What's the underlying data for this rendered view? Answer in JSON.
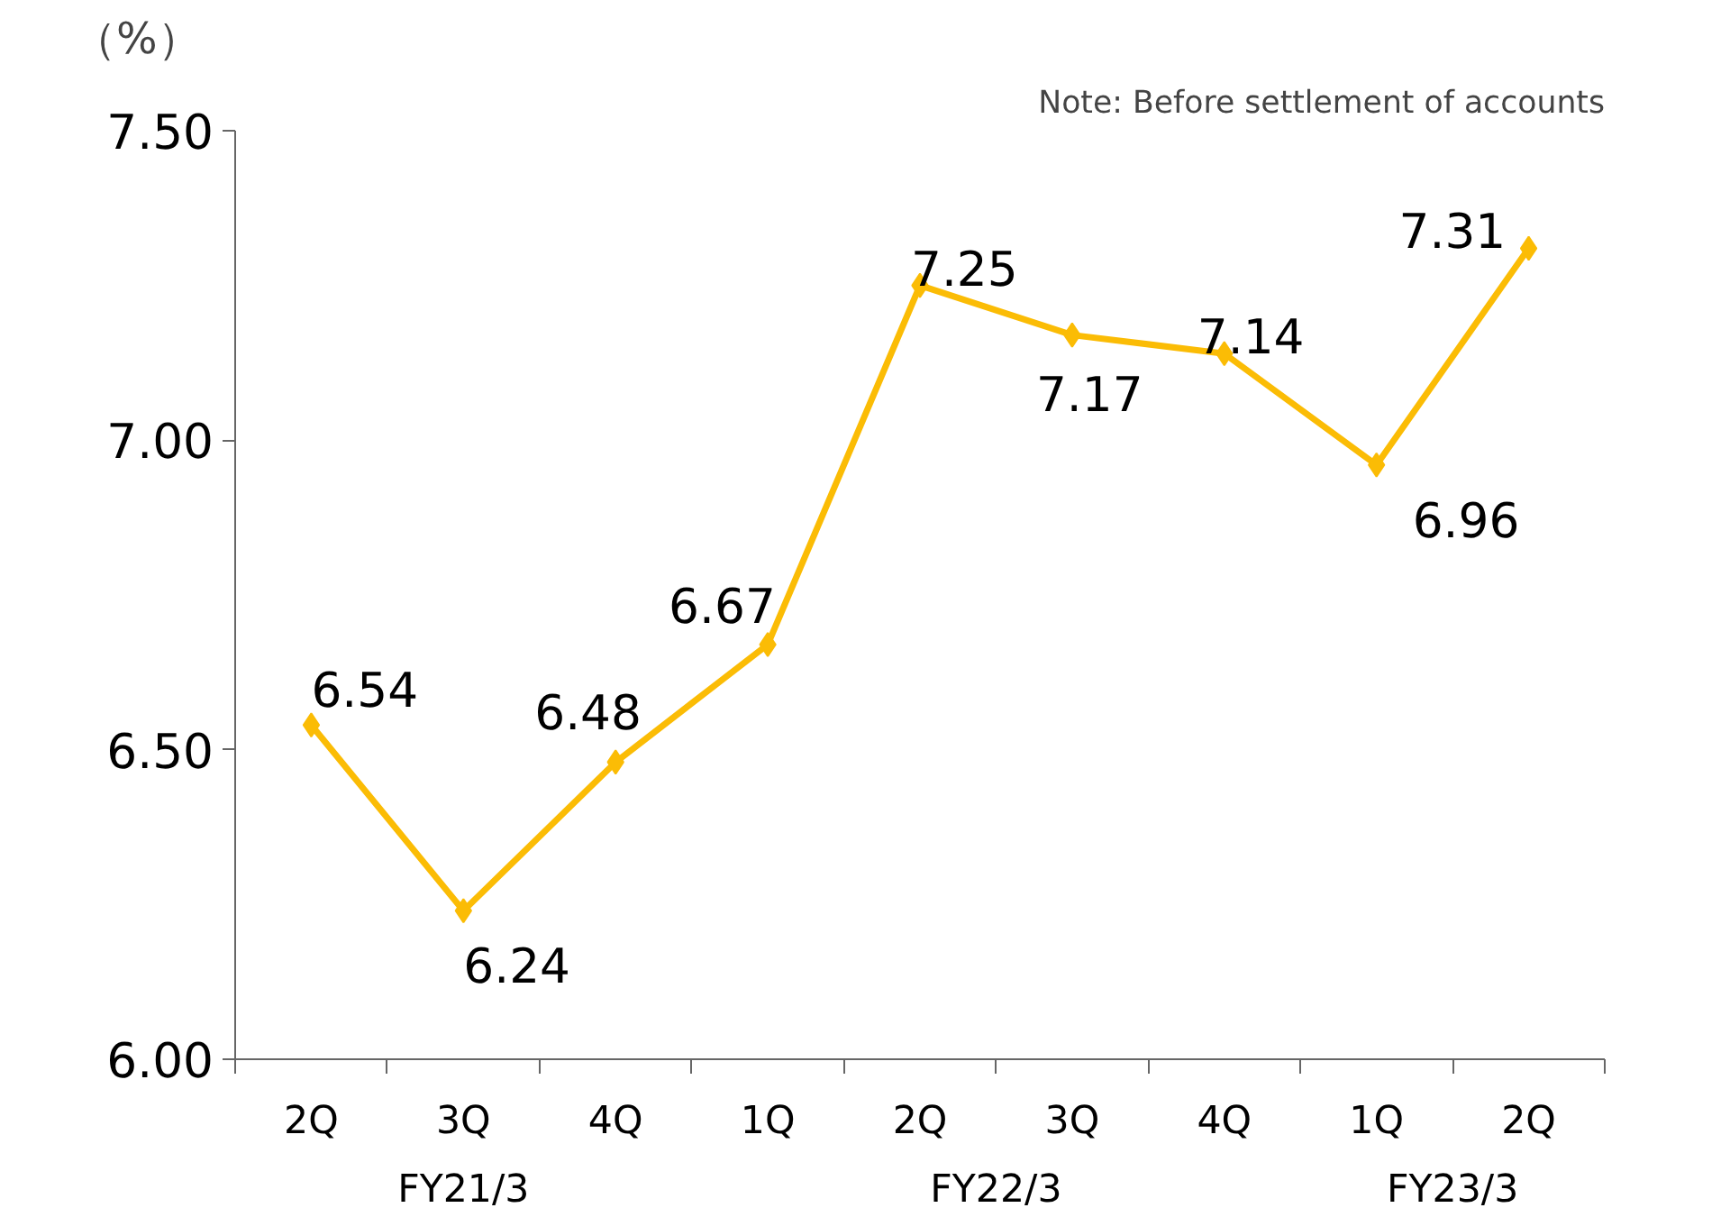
{
  "chart_data": {
    "type": "line",
    "ylabel": "（%）",
    "categories": [
      "2Q",
      "3Q",
      "4Q",
      "1Q",
      "2Q",
      "3Q",
      "4Q",
      "1Q",
      "2Q"
    ],
    "series": [
      {
        "color": "#fbbc05",
        "values": [
          6.54,
          6.24,
          6.48,
          6.67,
          7.25,
          7.17,
          7.14,
          6.96,
          7.31
        ]
      }
    ],
    "ylim": [
      6.0,
      7.5
    ],
    "yticks": [
      {
        "value": 6.0,
        "label": "6.00"
      },
      {
        "value": 6.5,
        "label": "6.50"
      },
      {
        "value": 7.0,
        "label": "7.00"
      },
      {
        "value": 7.5,
        "label": "7.50"
      }
    ],
    "annotations": [
      "FY21/3",
      "FY22/3",
      "FY23/3",
      "Note: Before settlement of accounts"
    ],
    "data_labels": true,
    "marker": "diamond",
    "line_style": "solid",
    "grid": false
  }
}
